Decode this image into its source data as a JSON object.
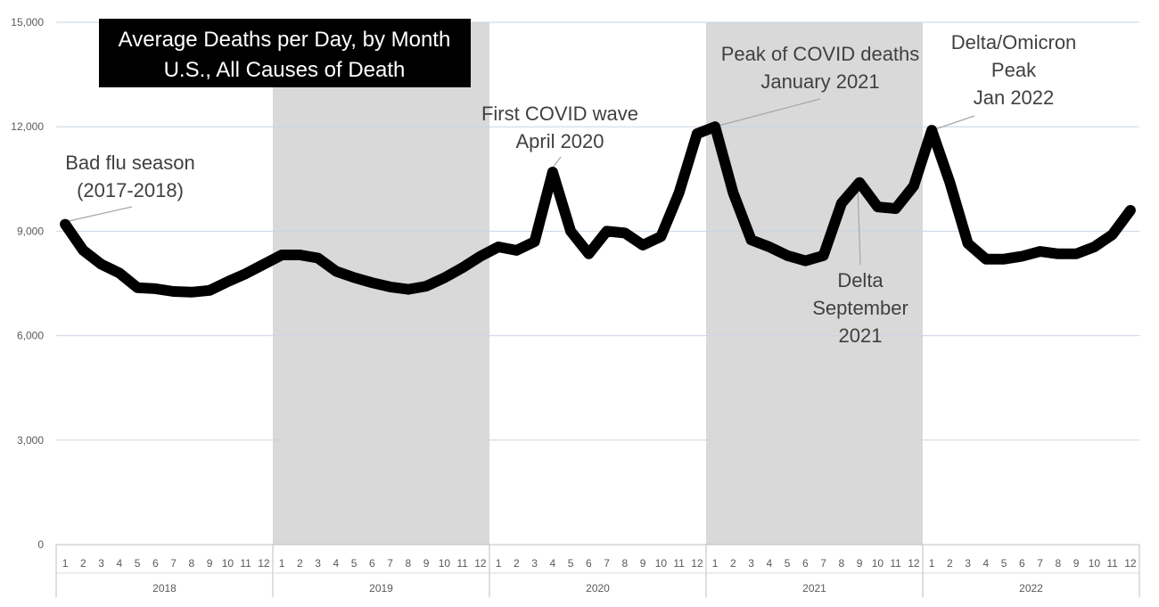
{
  "chart_data": {
    "type": "line",
    "title": [
      "Average Deaths per Day, by Month",
      "U.S., All Causes of Death"
    ],
    "xlabel": "",
    "ylabel": "",
    "ylim": [
      0,
      15000
    ],
    "yticks": [
      0,
      3000,
      6000,
      9000,
      12000,
      15000
    ],
    "ytick_labels": [
      "0",
      "3,000",
      "6,000",
      "9,000",
      "12,000",
      "15,000"
    ],
    "grid": "horizontal",
    "years": [
      "2018",
      "2019",
      "2020",
      "2021",
      "2022"
    ],
    "months": [
      "1",
      "2",
      "3",
      "4",
      "5",
      "6",
      "7",
      "8",
      "9",
      "10",
      "11",
      "12"
    ],
    "shaded_years": [
      "2019",
      "2021"
    ],
    "series": [
      {
        "values": [
          9200,
          8450,
          8050,
          7800,
          7380,
          7350,
          7270,
          7250,
          7300,
          7550,
          7780,
          8050,
          8320,
          8320,
          8230,
          7850,
          7670,
          7520,
          7400,
          7330,
          7420,
          7660,
          7950,
          8280,
          8550,
          8450,
          8700,
          10700,
          9000,
          8350,
          9000,
          8950,
          8600,
          8850,
          10100,
          11800,
          12000,
          10100,
          8750,
          8550,
          8300,
          8150,
          8300,
          9800,
          10400,
          9700,
          9650,
          10300,
          11900,
          10400,
          8650,
          8200,
          8200,
          8280,
          8420,
          8350,
          8350,
          8550,
          8900,
          9600
        ]
      }
    ],
    "annotations": [
      {
        "lines": [
          "Bad flu season",
          "(2017-2018)"
        ],
        "index": 0
      },
      {
        "lines": [
          "First COVID wave",
          "April 2020"
        ],
        "index": 27
      },
      {
        "lines": [
          "Peak of COVID deaths",
          "January 2021"
        ],
        "index": 36
      },
      {
        "lines": [
          "Delta/Omicron",
          "Peak",
          "Jan 2022"
        ],
        "index": 48
      },
      {
        "lines": [
          "Delta",
          "September",
          "2021"
        ],
        "index": 44
      }
    ]
  }
}
